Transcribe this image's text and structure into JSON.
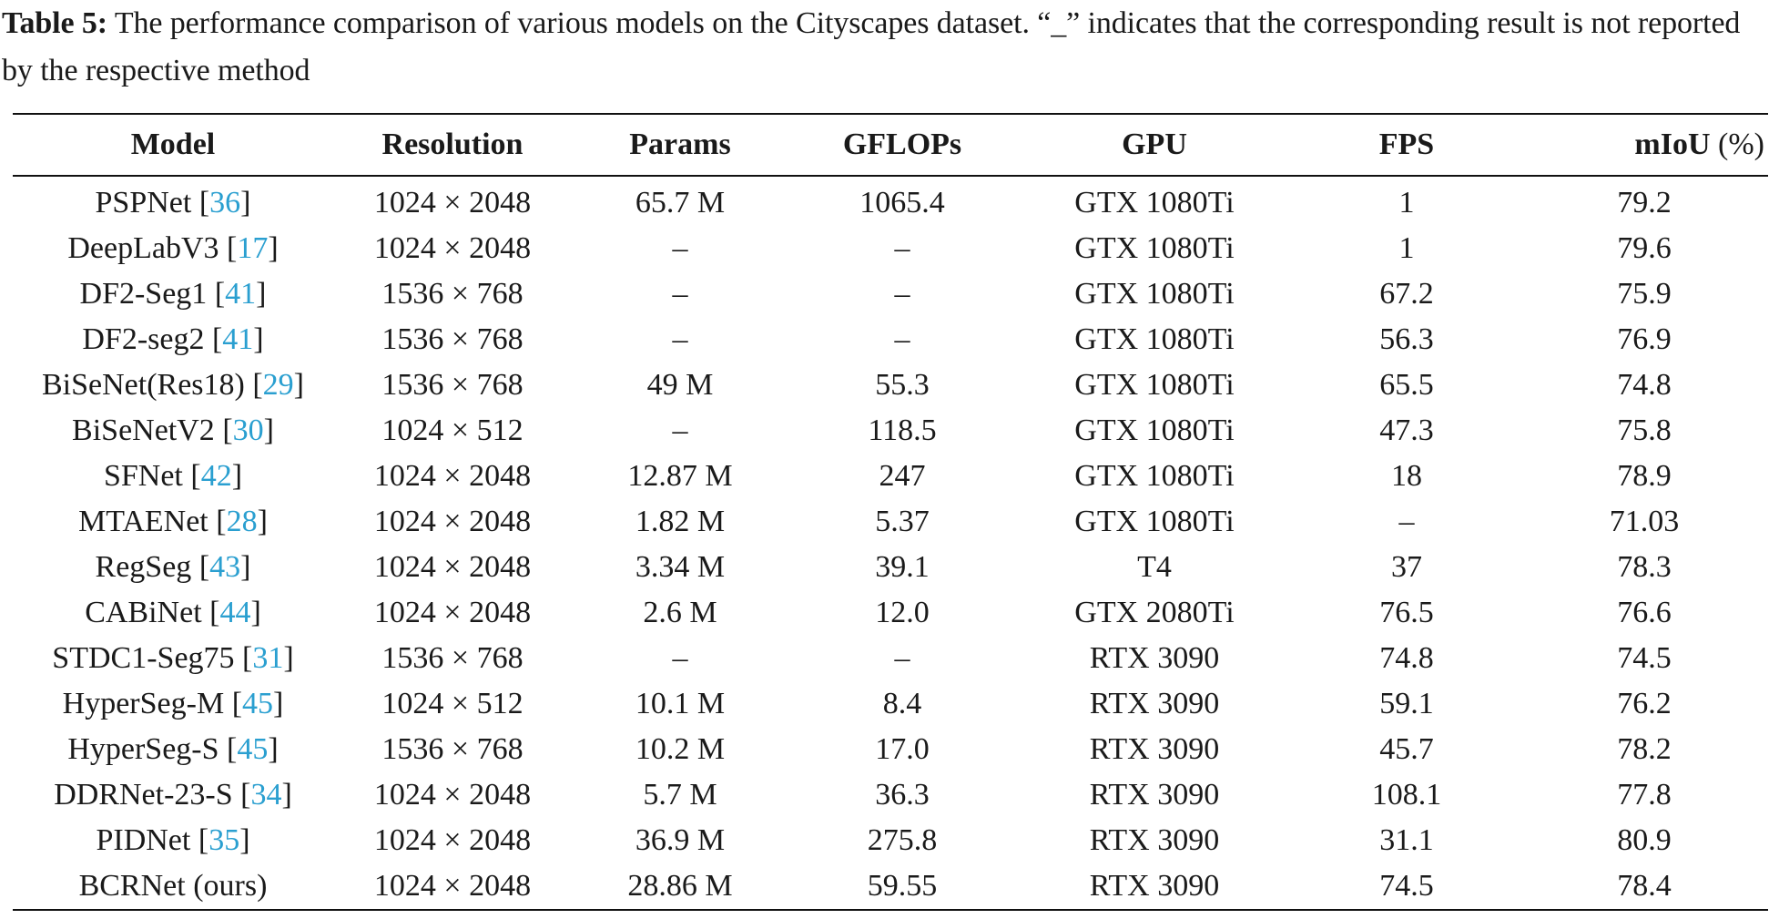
{
  "caption": {
    "label": "Table 5:",
    "text": " The performance comparison of various models on the Cityscapes dataset. “_” indicates that the corresponding result is not reported by the respective method"
  },
  "table": {
    "headers": {
      "model": "Model",
      "resolution": "Resolution",
      "params": "Params",
      "gflops": "GFLOPs",
      "gpu": "GPU",
      "fps": "FPS",
      "miou": "mIoU",
      "miou_unit": " (%)"
    },
    "rows": [
      {
        "model": "PSPNet",
        "ref": "36",
        "resolution": "1024 × 2048",
        "params": "65.7 M",
        "gflops": "1065.4",
        "gpu": "GTX 1080Ti",
        "fps": "1",
        "miou": "79.2"
      },
      {
        "model": "DeepLabV3",
        "ref": "17",
        "resolution": "1024 × 2048",
        "params": "–",
        "gflops": "–",
        "gpu": "GTX 1080Ti",
        "fps": "1",
        "miou": "79.6"
      },
      {
        "model": "DF2-Seg1",
        "ref": "41",
        "resolution": "1536 × 768",
        "params": "–",
        "gflops": "–",
        "gpu": "GTX 1080Ti",
        "fps": "67.2",
        "miou": "75.9"
      },
      {
        "model": "DF2-seg2",
        "ref": "41",
        "resolution": "1536 × 768",
        "params": "–",
        "gflops": "–",
        "gpu": "GTX 1080Ti",
        "fps": "56.3",
        "miou": "76.9"
      },
      {
        "model": "BiSeNet(Res18)",
        "ref": "29",
        "resolution": "1536 × 768",
        "params": "49 M",
        "gflops": "55.3",
        "gpu": "GTX 1080Ti",
        "fps": "65.5",
        "miou": "74.8"
      },
      {
        "model": "BiSeNetV2",
        "ref": "30",
        "resolution": "1024 × 512",
        "params": "–",
        "gflops": "118.5",
        "gpu": "GTX 1080Ti",
        "fps": "47.3",
        "miou": "75.8"
      },
      {
        "model": "SFNet",
        "ref": "42",
        "resolution": "1024 × 2048",
        "params": "12.87 M",
        "gflops": "247",
        "gpu": "GTX 1080Ti",
        "fps": "18",
        "miou": "78.9"
      },
      {
        "model": "MTAENet",
        "ref": "28",
        "resolution": "1024 × 2048",
        "params": "1.82 M",
        "gflops": "5.37",
        "gpu": "GTX 1080Ti",
        "fps": "–",
        "miou": "71.03"
      },
      {
        "model": "RegSeg",
        "ref": "43",
        "resolution": "1024 × 2048",
        "params": "3.34 M",
        "gflops": "39.1",
        "gpu": "T4",
        "fps": "37",
        "miou": "78.3"
      },
      {
        "model": "CABiNet",
        "ref": "44",
        "resolution": "1024 × 2048",
        "params": "2.6 M",
        "gflops": "12.0",
        "gpu": "GTX 2080Ti",
        "fps": "76.5",
        "miou": "76.6"
      },
      {
        "model": "STDC1-Seg75",
        "ref": "31",
        "resolution": "1536 × 768",
        "params": "–",
        "gflops": "–",
        "gpu": "RTX 3090",
        "fps": "74.8",
        "miou": "74.5"
      },
      {
        "model": "HyperSeg-M",
        "ref": "45",
        "resolution": "1024 × 512",
        "params": "10.1 M",
        "gflops": "8.4",
        "gpu": "RTX 3090",
        "fps": "59.1",
        "miou": "76.2"
      },
      {
        "model": "HyperSeg-S",
        "ref": "45",
        "resolution": "1536 × 768",
        "params": "10.2 M",
        "gflops": "17.0",
        "gpu": "RTX 3090",
        "fps": "45.7",
        "miou": "78.2"
      },
      {
        "model": "DDRNet-23-S",
        "ref": "34",
        "resolution": "1024 × 2048",
        "params": "5.7 M",
        "gflops": "36.3",
        "gpu": "RTX 3090",
        "fps": "108.1",
        "miou": "77.8"
      },
      {
        "model": "PIDNet",
        "ref": "35",
        "resolution": "1024 × 2048",
        "params": "36.9 M",
        "gflops": "275.8",
        "gpu": "RTX 3090",
        "fps": "31.1",
        "miou": "80.9"
      },
      {
        "model": "BCRNet (ours)",
        "ref": "",
        "resolution": "1024 × 2048",
        "params": "28.86 M",
        "gflops": "59.55",
        "gpu": "RTX 3090",
        "fps": "74.5",
        "miou": "78.4"
      }
    ]
  }
}
